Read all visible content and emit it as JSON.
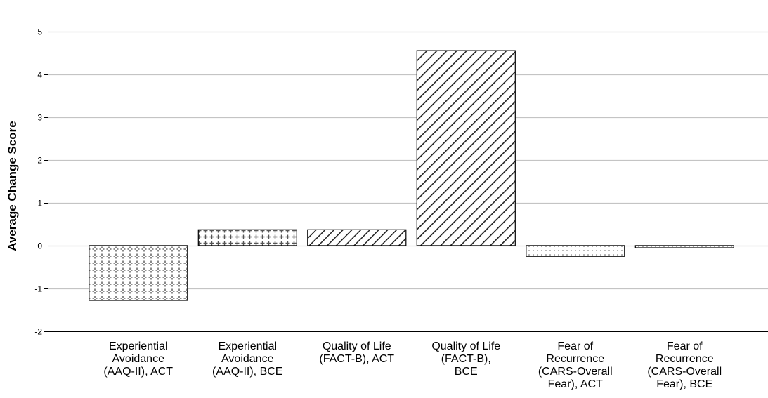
{
  "chart_data": {
    "type": "bar",
    "title": "",
    "xlabel": "",
    "ylabel": "Average Change Score",
    "ylim": [
      -2,
      5.6
    ],
    "yticks": [
      -2,
      -1,
      0,
      1,
      2,
      3,
      4,
      5
    ],
    "grid": true,
    "categories": [
      [
        "Experiential",
        "Avoidance",
        "(AAQ-II), ACT"
      ],
      [
        "Experiential",
        "Avoidance",
        "(AAQ-II), BCE"
      ],
      [
        "Quality of Life",
        "(FACT-B), ACT"
      ],
      [
        "Quality of Life",
        "(FACT-B),",
        "BCE"
      ],
      [
        "Fear of",
        "Recurrence",
        "(CARS-Overall",
        "Fear), ACT"
      ],
      [
        "Fear of",
        "Recurrence",
        "(CARS-Overall",
        "Fear), BCE"
      ]
    ],
    "values": [
      -1.28,
      0.37,
      0.37,
      4.55,
      -0.25,
      -0.05
    ],
    "patterns": [
      "crosses-dense",
      "crosses-sparse",
      "diagonal-thin",
      "diagonal-thick",
      "dots",
      "dots"
    ]
  }
}
